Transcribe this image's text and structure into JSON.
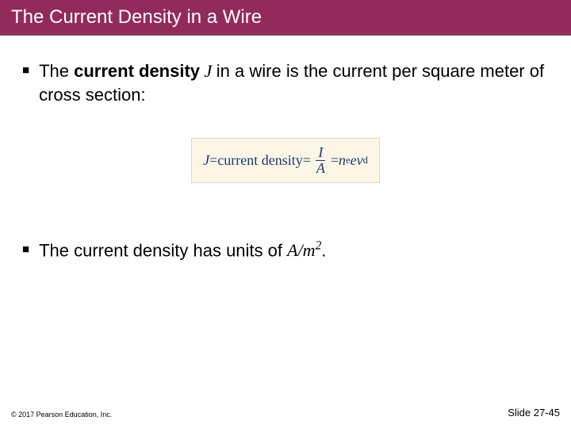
{
  "title": "The Current Density in a Wire",
  "bullets": {
    "first": {
      "pre": "The ",
      "bold": "current density",
      "var": " J ",
      "post": "in a wire is the current per square meter of cross section:"
    },
    "second": {
      "pre": "The current density has units of ",
      "unit_base": "A/m",
      "unit_exp": "2",
      "post": "."
    }
  },
  "equation": {
    "lhs_var": "J",
    "eq1": " = ",
    "label": "current density",
    "eq2": " = ",
    "frac1_num": "I",
    "frac1_den": "A",
    "eq3": " = ",
    "rhs_n": "n",
    "rhs_n_sub": "e",
    "rhs_e": "e",
    "rhs_v": "v",
    "rhs_v_sub": "d"
  },
  "footer": {
    "copyright": "© 2017 Pearson Education, Inc.",
    "slide": "Slide 27-45"
  },
  "style": {
    "title_bg": "#932a5c",
    "title_fg": "#ffffff",
    "eq_bg": "#fdf6e7",
    "eq_color": "#1a3a6e"
  }
}
